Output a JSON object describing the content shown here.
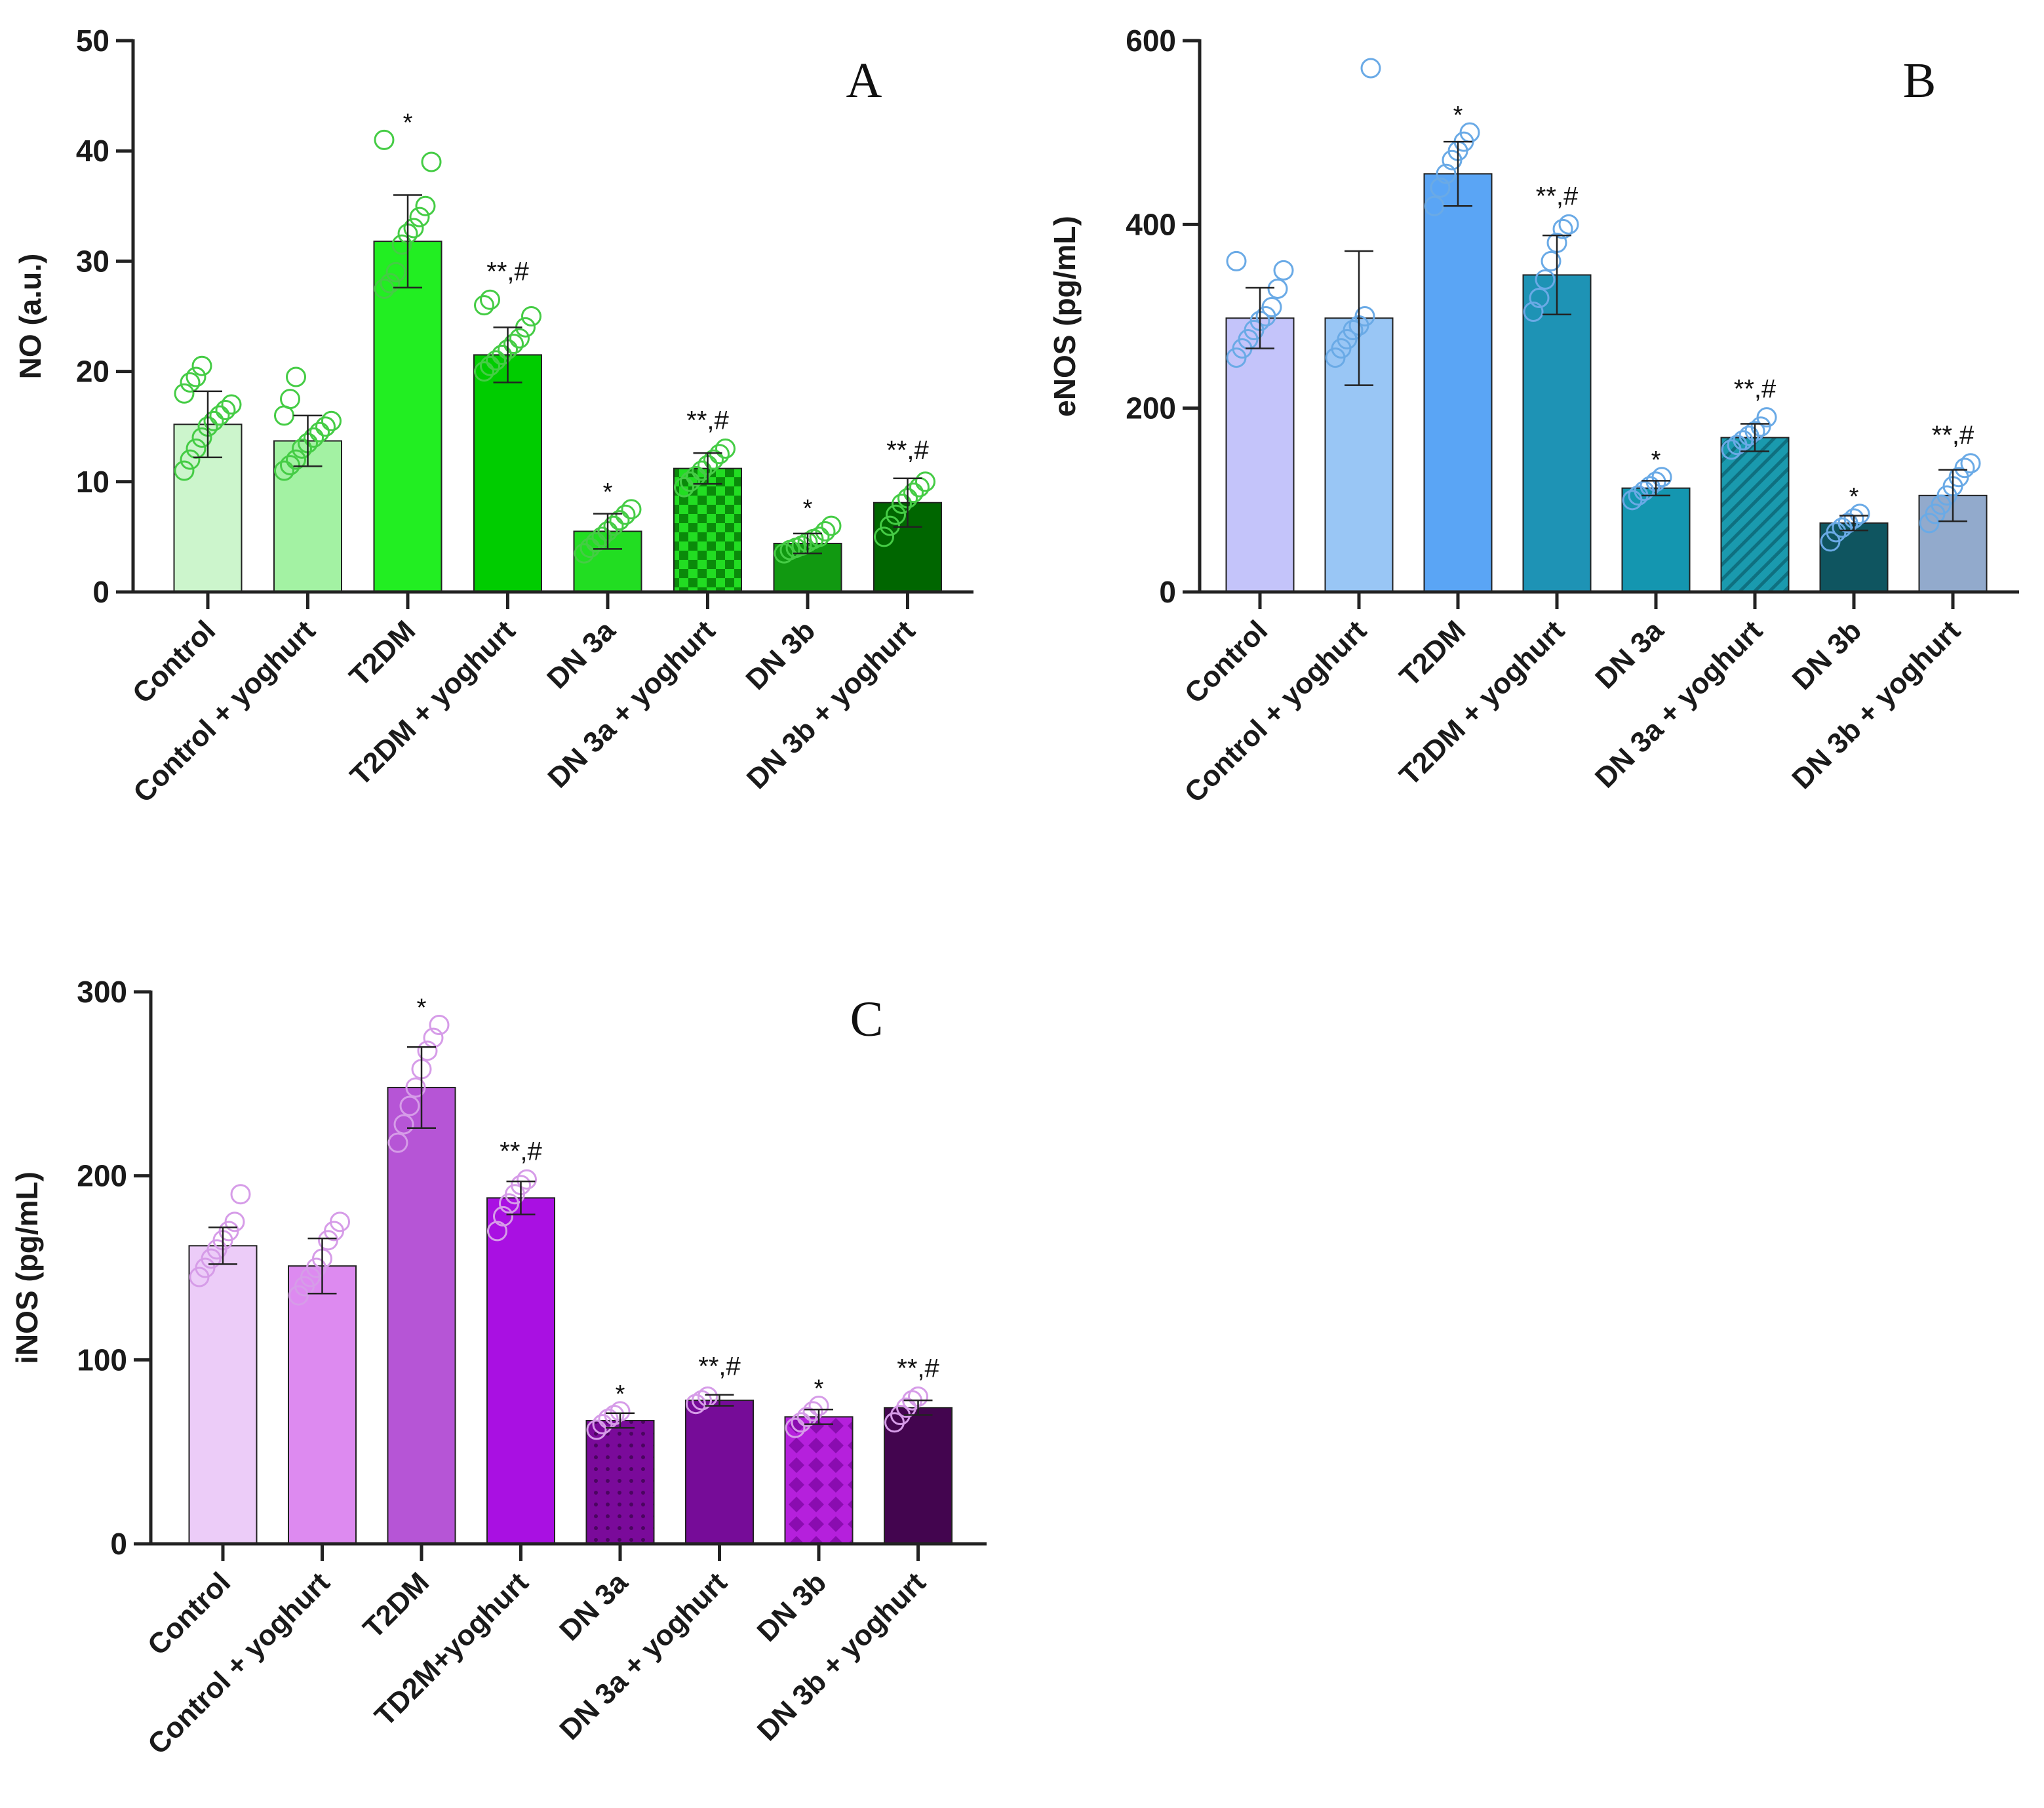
{
  "chart_data": [
    {
      "panel": "A",
      "type": "bar",
      "ylabel": "NO (a.u.)",
      "ylim": [
        0,
        50
      ],
      "yticks": [
        0,
        10,
        20,
        30,
        40,
        50
      ],
      "categories": [
        "Control",
        "Control + yoghurt",
        "T2DM",
        "T2DM + yoghurt",
        "DN 3a",
        "DN 3a + yoghurt",
        "DN 3b",
        "DN 3b + yoghurt"
      ],
      "values": [
        15.2,
        13.7,
        31.8,
        21.5,
        5.5,
        11.2,
        4.4,
        8.1
      ],
      "errors": [
        3.0,
        2.3,
        4.2,
        2.5,
        1.6,
        1.4,
        0.9,
        2.2
      ],
      "significance": [
        "",
        "",
        "*",
        "**,#",
        "*",
        "**,#",
        "*",
        "**,#"
      ],
      "points": [
        [
          11,
          12,
          13,
          14,
          15,
          15.5,
          16,
          16.5,
          17,
          18,
          19,
          19.5,
          20.5
        ],
        [
          11,
          11.5,
          12,
          13,
          13.5,
          14,
          14.5,
          15,
          15.5,
          16,
          17.5,
          19.5
        ],
        [
          27.5,
          28,
          29,
          31.5,
          32.5,
          33,
          34,
          35,
          39,
          41
        ],
        [
          20,
          20.5,
          21,
          21.5,
          22,
          22.5,
          23,
          24,
          25,
          26,
          26.5
        ],
        [
          3.5,
          4,
          4.5,
          5,
          5.5,
          6,
          6.5,
          7,
          7.5
        ],
        [
          9.5,
          10,
          10.5,
          11,
          11.5,
          12,
          12.5,
          13
        ],
        [
          3.5,
          3.8,
          4,
          4.2,
          4.5,
          4.8,
          5,
          5.5,
          6
        ],
        [
          5,
          6,
          7,
          8,
          8.5,
          9,
          9.5,
          10
        ]
      ],
      "colors": [
        "#ccf5cc",
        "#a3f2a3",
        "#22ee22",
        "#00cc00",
        "#22dd22",
        "#11cc11",
        "#119911",
        "#006600"
      ],
      "pattern": [
        null,
        null,
        null,
        null,
        null,
        "checker",
        null,
        null
      ],
      "point_color": "#45cc45",
      "letter": "A"
    },
    {
      "panel": "B",
      "type": "bar",
      "ylabel": "eNOS (pg/mL)",
      "ylim": [
        0,
        600
      ],
      "yticks": [
        0,
        200,
        400,
        600
      ],
      "categories": [
        "Control",
        "Control + yoghurt",
        "T2DM",
        "T2DM + yoghurt",
        "DN 3a",
        "DN 3a + yoghurt",
        "DN 3b",
        "DN 3b + yoghurt"
      ],
      "values": [
        298,
        298,
        455,
        345,
        113,
        168,
        75,
        105
      ],
      "errors": [
        33,
        73,
        35,
        43,
        8,
        15,
        8,
        28
      ],
      "significance": [
        "",
        "",
        "*",
        "**,#",
        "*",
        "**,#",
        "*",
        "**,#"
      ],
      "points": [
        [
          255,
          265,
          275,
          285,
          295,
          300,
          310,
          330,
          350,
          360
        ],
        [
          255,
          265,
          275,
          285,
          290,
          300,
          570
        ],
        [
          420,
          440,
          455,
          470,
          480,
          490,
          500
        ],
        [
          305,
          320,
          340,
          360,
          380,
          395,
          400
        ],
        [
          100,
          105,
          110,
          115,
          120,
          125
        ],
        [
          155,
          160,
          165,
          170,
          175,
          180,
          190
        ],
        [
          55,
          65,
          70,
          75,
          80,
          85
        ],
        [
          75,
          85,
          95,
          105,
          115,
          125,
          135,
          140
        ]
      ],
      "colors": [
        "#c4c4fa",
        "#99c6f5",
        "#5aa5f5",
        "#1e93b5",
        "#1496b0",
        "#1a9aae",
        "#0f5560",
        "#92aacc"
      ],
      "pattern": [
        null,
        null,
        null,
        null,
        null,
        "hatch",
        null,
        null
      ],
      "point_color": "#6aaae6",
      "letter": "B"
    },
    {
      "panel": "C",
      "type": "bar",
      "ylabel": "iNOS (pg/mL)",
      "ylim": [
        0,
        300
      ],
      "yticks": [
        0,
        100,
        200,
        300
      ],
      "categories": [
        "Control",
        "Control + yoghurt",
        "T2DM",
        "TD2M+yoghurt",
        "DN 3a",
        "DN 3a + yoghurt",
        "DN 3b",
        "DN 3b + yoghurt"
      ],
      "values": [
        162,
        151,
        248,
        188,
        67,
        78,
        69,
        74
      ],
      "errors": [
        10,
        15,
        22,
        9,
        4,
        3,
        4,
        4
      ],
      "significance": [
        "",
        "",
        "*",
        "**,#",
        "*",
        "**,#",
        "*",
        "**,#"
      ],
      "points": [
        [
          145,
          150,
          155,
          160,
          165,
          170,
          175,
          190
        ],
        [
          135,
          140,
          145,
          150,
          155,
          165,
          170,
          175
        ],
        [
          218,
          228,
          238,
          248,
          258,
          268,
          275,
          282
        ],
        [
          170,
          178,
          185,
          190,
          195,
          198
        ],
        [
          62,
          65,
          68,
          70,
          72
        ],
        [
          76,
          78,
          80
        ],
        [
          63,
          66,
          69,
          72,
          75
        ],
        [
          66,
          70,
          74,
          78,
          80
        ]
      ],
      "colors": [
        "#ecccf8",
        "#dd8af0",
        "#b655d6",
        "#a910e2",
        "#7a0a9a",
        "#760c98",
        "#b520dc",
        "#43054f"
      ],
      "pattern": [
        null,
        null,
        null,
        null,
        "dots",
        null,
        "diamond",
        null
      ],
      "point_color": "#d69ce8",
      "letter": "C"
    }
  ]
}
